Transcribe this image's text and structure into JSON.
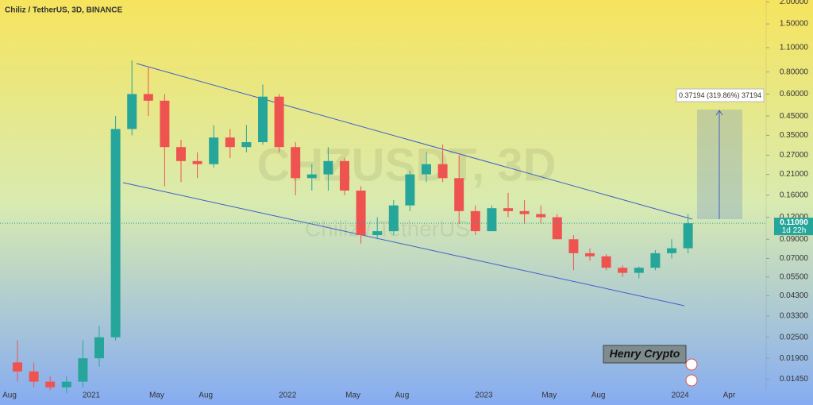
{
  "chart_data": {
    "type": "candlestick",
    "title": "Chiliz / TetherUS, 3D, BINANCE",
    "watermark": "CHZUSDT, 3D",
    "watermark_sub": "Chiliz / TetherUS",
    "annotation": "0.37194 (319.86%) 37194",
    "author": "Henry Crypto",
    "log_scale": true,
    "up_color": "#26a69a",
    "down_color": "#ef5350",
    "categories": [
      "Aug",
      null,
      null,
      null,
      null,
      "2021",
      null,
      null,
      null,
      "May",
      null,
      null,
      "Aug",
      null,
      null,
      null,
      null,
      "2022",
      null,
      null,
      null,
      "May",
      null,
      null,
      "Aug",
      null,
      null,
      null,
      null,
      "2023",
      null,
      null,
      null,
      "May",
      null,
      null,
      "Aug",
      null,
      null,
      null,
      null,
      "2024",
      null,
      null,
      "Apr"
    ],
    "open": [
      0.018,
      0.016,
      0.014,
      0.013,
      0.014,
      0.019,
      0.025,
      0.38,
      0.6,
      0.55,
      0.3,
      0.25,
      0.24,
      0.34,
      0.3,
      0.32,
      0.58,
      0.3,
      0.2,
      0.21,
      0.25,
      0.17,
      0.095,
      0.1,
      0.14,
      0.21,
      0.24,
      0.2,
      0.13,
      0.1,
      0.135,
      0.13,
      0.125,
      0.12,
      0.09,
      0.075,
      0.072,
      0.062,
      0.058,
      0.062,
      0.075,
      0.08,
      null,
      null,
      null
    ],
    "high": [
      0.024,
      0.018,
      0.015,
      0.015,
      0.024,
      0.029,
      0.45,
      0.93,
      0.85,
      0.6,
      0.33,
      0.28,
      0.4,
      0.38,
      0.4,
      0.68,
      0.6,
      0.32,
      0.24,
      0.3,
      0.26,
      0.18,
      0.12,
      0.15,
      0.22,
      0.28,
      0.31,
      0.27,
      0.14,
      0.14,
      0.165,
      0.15,
      0.14,
      0.125,
      0.095,
      0.08,
      0.074,
      0.064,
      0.063,
      0.078,
      0.09,
      0.125,
      null,
      null,
      null
    ],
    "low": [
      0.014,
      0.013,
      0.0125,
      0.012,
      0.013,
      0.017,
      0.024,
      0.35,
      0.45,
      0.18,
      0.19,
      0.2,
      0.23,
      0.26,
      0.28,
      0.31,
      0.28,
      0.16,
      0.17,
      0.17,
      0.16,
      0.085,
      0.09,
      0.095,
      0.13,
      0.19,
      0.19,
      0.11,
      0.095,
      0.1,
      0.12,
      0.11,
      0.11,
      0.09,
      0.06,
      0.068,
      0.06,
      0.055,
      0.054,
      0.06,
      0.07,
      0.075,
      null,
      null,
      null
    ],
    "close": [
      0.016,
      0.014,
      0.013,
      0.014,
      0.019,
      0.025,
      0.38,
      0.6,
      0.55,
      0.3,
      0.25,
      0.24,
      0.34,
      0.3,
      0.32,
      0.58,
      0.3,
      0.2,
      0.21,
      0.25,
      0.17,
      0.095,
      0.1,
      0.14,
      0.21,
      0.24,
      0.2,
      0.13,
      0.1,
      0.135,
      0.13,
      0.125,
      0.12,
      0.09,
      0.075,
      0.072,
      0.062,
      0.058,
      0.062,
      0.075,
      0.08,
      0.1109,
      null,
      null,
      null
    ],
    "last_price": {
      "value": 0.1109,
      "label": "0.11090"
    },
    "countdown": "1d 22h",
    "ylim": [
      0.0127,
      2.05
    ],
    "yticks": [
      {
        "value": 2.0,
        "label": "2.00000"
      },
      {
        "value": 1.5,
        "label": "1.50000"
      },
      {
        "value": 1.1,
        "label": "1.10000"
      },
      {
        "value": 0.8,
        "label": "0.80000"
      },
      {
        "value": 0.6,
        "label": "0.60000"
      },
      {
        "value": 0.45,
        "label": "0.45000"
      },
      {
        "value": 0.35,
        "label": "0.35000"
      },
      {
        "value": 0.27,
        "label": "0.27000"
      },
      {
        "value": 0.21,
        "label": "0.21000"
      },
      {
        "value": 0.16,
        "label": "0.16000"
      },
      {
        "value": 0.12,
        "label": "0.12000"
      },
      {
        "value": 0.09,
        "label": "0.09000"
      },
      {
        "value": 0.07,
        "label": "0.07000"
      },
      {
        "value": 0.055,
        "label": "0.05500"
      },
      {
        "value": 0.043,
        "label": "0.04300"
      },
      {
        "value": 0.033,
        "label": "0.03300"
      },
      {
        "value": 0.025,
        "label": "0.02500"
      },
      {
        "value": 0.019,
        "label": "0.01900"
      },
      {
        "value": 0.0145,
        "label": "0.01450"
      }
    ]
  }
}
